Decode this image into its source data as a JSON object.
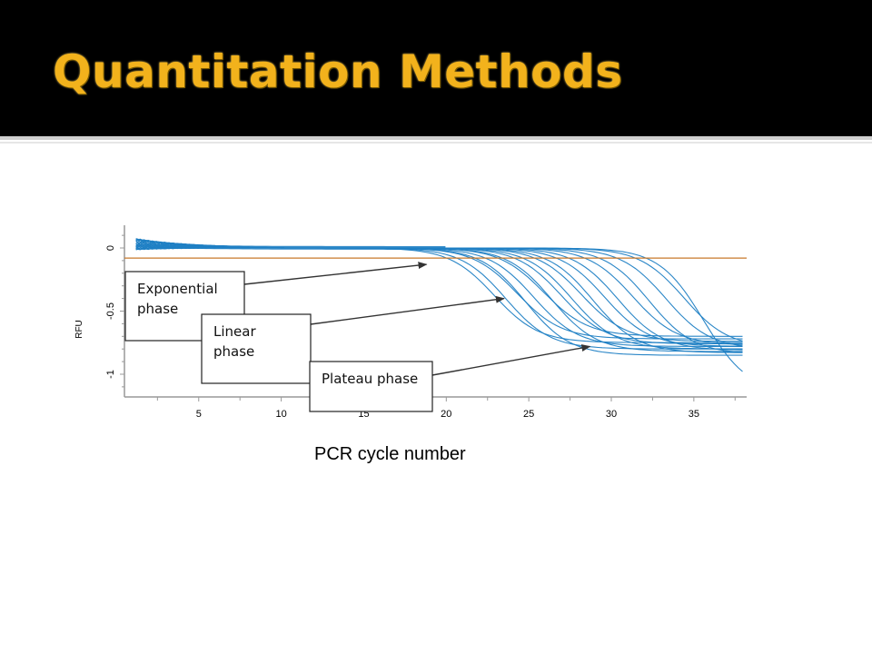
{
  "slide": {
    "title": "Quantitation Methods",
    "x_caption": "PCR cycle number"
  },
  "colors": {
    "title": "#f2b21c",
    "title_bar": "#000000",
    "curves": "#1f7fc4",
    "threshold": "#c8782a"
  },
  "chart_data": {
    "type": "line",
    "title": "",
    "xlabel": "",
    "ylabel": "RFU",
    "xlim": [
      0.5,
      38.2
    ],
    "ylim": [
      -1.18,
      0.18
    ],
    "x_ticks": [
      5,
      10,
      15,
      20,
      25,
      30,
      35
    ],
    "x_tick_labels": [
      "5",
      "10",
      "15",
      "20",
      "25",
      "30",
      "35"
    ],
    "y_ticks": [
      0,
      -0.5,
      -1
    ],
    "y_tick_labels": [
      "0",
      "-0.5",
      "-1"
    ],
    "threshold": -0.08,
    "grid": false,
    "legend": "none",
    "curve_model": "sigmoid decay from baseline 0 toward plateau",
    "series": [
      {
        "midpoint": 22.9,
        "plateau": -0.75
      },
      {
        "midpoint": 23.6,
        "plateau": -0.8
      },
      {
        "midpoint": 24.3,
        "plateau": -0.72
      },
      {
        "midpoint": 24.8,
        "plateau": -0.85
      },
      {
        "midpoint": 25.3,
        "plateau": -0.78
      },
      {
        "midpoint": 25.9,
        "plateau": -0.7
      },
      {
        "midpoint": 26.4,
        "plateau": -0.82
      },
      {
        "midpoint": 27.0,
        "plateau": -0.76
      },
      {
        "midpoint": 27.6,
        "plateau": -0.8
      },
      {
        "midpoint": 28.2,
        "plateau": -0.74
      },
      {
        "midpoint": 28.9,
        "plateau": -0.83
      },
      {
        "midpoint": 29.6,
        "plateau": -0.78
      },
      {
        "midpoint": 30.4,
        "plateau": -0.81
      },
      {
        "midpoint": 31.3,
        "plateau": -0.77
      },
      {
        "midpoint": 32.3,
        "plateau": -0.84
      },
      {
        "midpoint": 33.3,
        "plateau": -0.8
      },
      {
        "midpoint": 34.4,
        "plateau": -0.79
      },
      {
        "midpoint": 35.6,
        "plateau": -1.15
      }
    ],
    "annotations": [
      {
        "text_lines": [
          "Exponential",
          "phase"
        ],
        "points_to": [
          18.8,
          -0.13
        ]
      },
      {
        "text_lines": [
          "Linear",
          "phase"
        ],
        "points_to": [
          23.5,
          -0.4
        ]
      },
      {
        "text_lines": [
          "Plateau phase"
        ],
        "points_to": [
          28.7,
          -0.78
        ]
      }
    ]
  }
}
